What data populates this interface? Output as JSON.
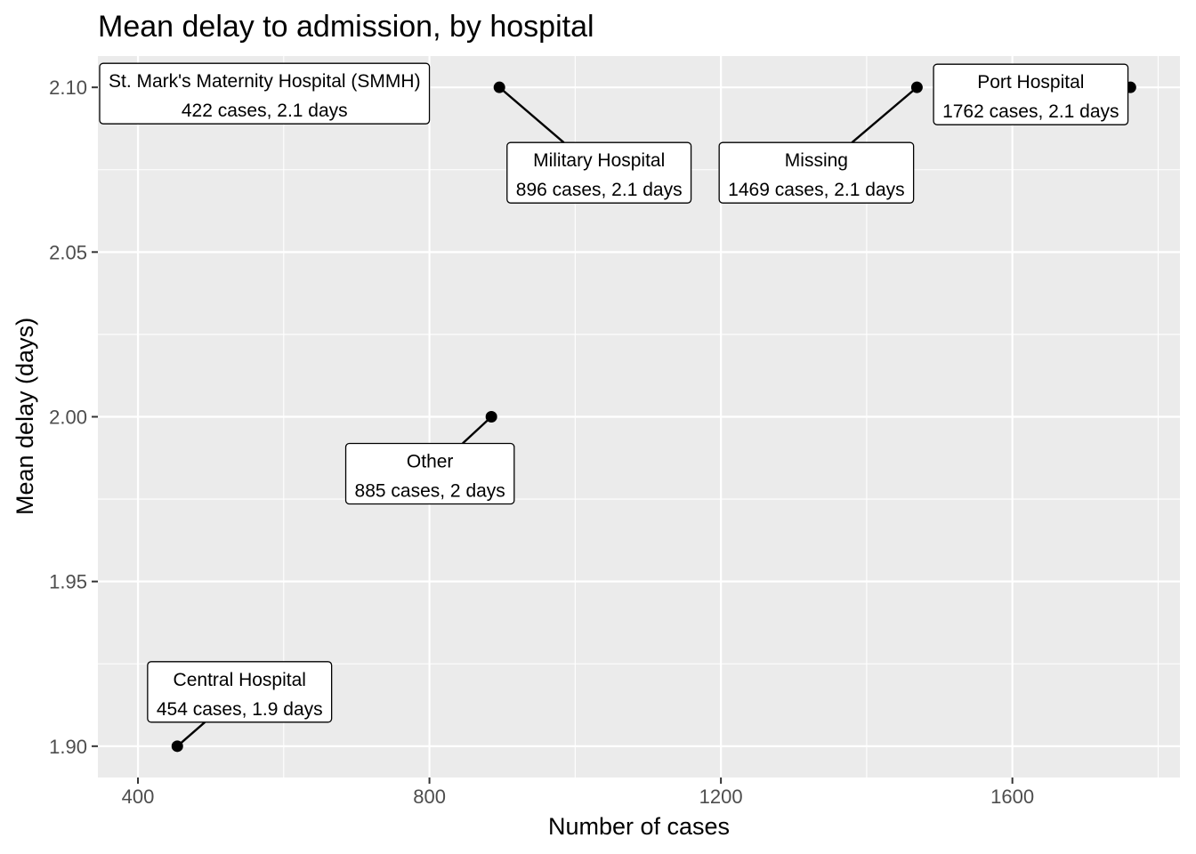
{
  "chart_data": {
    "type": "scatter",
    "title": "Mean delay to admission, by hospital",
    "xlabel": "Number of cases",
    "ylabel": "Mean delay (days)",
    "xlim": [
      345,
      1830
    ],
    "ylim": [
      1.8905,
      2.1095
    ],
    "x_ticks": [
      400,
      800,
      1200,
      1600
    ],
    "x_tick_labels": [
      "400",
      "800",
      "1200",
      "1600"
    ],
    "y_ticks": [
      1.9,
      1.95,
      2.0,
      2.05,
      2.1
    ],
    "y_tick_labels": [
      "1.90",
      "1.95",
      "2.00",
      "2.05",
      "2.10"
    ],
    "grid": true,
    "panel_background": "#ebebeb",
    "grid_color": "#ffffff",
    "point_color": "#000000",
    "points": [
      {
        "hospital": "St. Mark's Maternity Hospital (SMMH)",
        "x": 422,
        "y": 2.1,
        "label": "St. Mark's Maternity Hospital (SMMH)",
        "sublabel": "422 cases, 2.1 days"
      },
      {
        "hospital": "Central Hospital",
        "x": 454,
        "y": 1.9,
        "label": "Central Hospital",
        "sublabel": "454 cases, 1.9 days"
      },
      {
        "hospital": "Other",
        "x": 885,
        "y": 2.0,
        "label": "Other",
        "sublabel": "885 cases, 2 days"
      },
      {
        "hospital": "Military Hospital",
        "x": 896,
        "y": 2.1,
        "label": "Military Hospital",
        "sublabel": "896 cases, 2.1 days"
      },
      {
        "hospital": "Missing",
        "x": 1469,
        "y": 2.1,
        "label": "Missing",
        "sublabel": "1469 cases, 2.1 days"
      },
      {
        "hospital": "Port Hospital",
        "x": 1762,
        "y": 2.1,
        "label": "Port Hospital",
        "sublabel": "1762 cases, 2.1 days"
      }
    ]
  }
}
